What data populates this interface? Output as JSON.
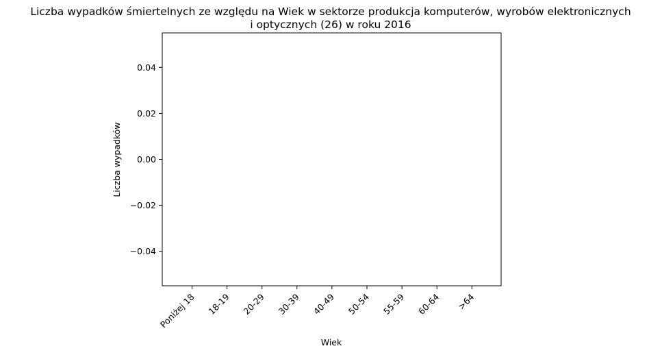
{
  "chart_data": {
    "type": "bar",
    "title_lines": [
      "Liczba wypadków śmiertelnych ze względu na Wiek w sektorze produkcja komputerów, wyrobów elektronicznych",
      "i optycznych (26)  w roku 2016"
    ],
    "xlabel": "Wiek",
    "ylabel": "Liczba wypadków",
    "categories": [
      "Poniżej 18",
      "18-19",
      "20-29",
      "30-39",
      "40-49",
      "50-54",
      "55-59",
      "60-64",
      ">64"
    ],
    "values": [
      0,
      0,
      0,
      0,
      0,
      0,
      0,
      0,
      0
    ],
    "ylim": [
      -0.055,
      0.055
    ],
    "yticks": [
      -0.04,
      -0.02,
      0.0,
      0.02,
      0.04
    ],
    "ytick_labels": [
      "−0.04",
      "−0.02",
      "0.00",
      "0.02",
      "0.04"
    ],
    "grid": false,
    "bar_color": "#1f77b4"
  }
}
